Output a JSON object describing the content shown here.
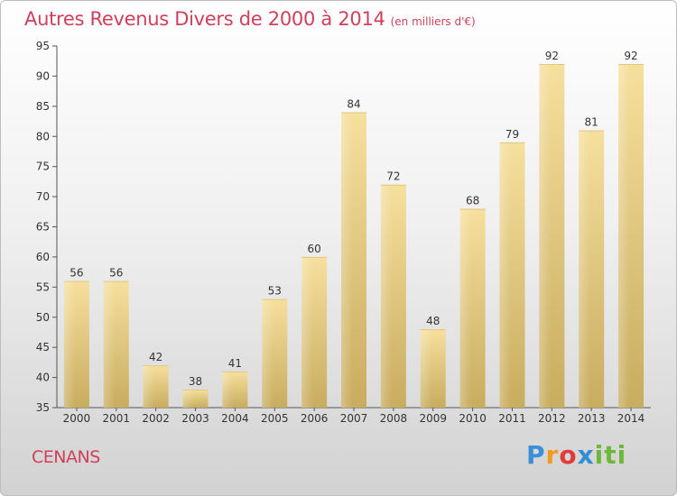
{
  "title": "Autres Revenus Divers de 2000 à 2014",
  "subtitle": "(en milliers d'€)",
  "town": "CENANS",
  "logo": {
    "p": "P",
    "r": "r",
    "o": "o",
    "x": "x",
    "iti": "iti"
  },
  "colors": {
    "title": "#d0405a",
    "bar_light": "#f6e09e",
    "bar_dark": "#c8ac5f"
  },
  "chart_data": {
    "type": "bar",
    "categories": [
      "2000",
      "2001",
      "2002",
      "2003",
      "2004",
      "2005",
      "2006",
      "2007",
      "2008",
      "2009",
      "2010",
      "2011",
      "2012",
      "2013",
      "2014"
    ],
    "values": [
      56,
      56,
      42,
      38,
      41,
      53,
      60,
      84,
      72,
      48,
      68,
      79,
      92,
      81,
      92
    ],
    "ylim": [
      35,
      95
    ],
    "yticks": [
      35,
      40,
      45,
      50,
      55,
      60,
      65,
      70,
      75,
      80,
      85,
      90,
      95
    ],
    "grid": false
  }
}
